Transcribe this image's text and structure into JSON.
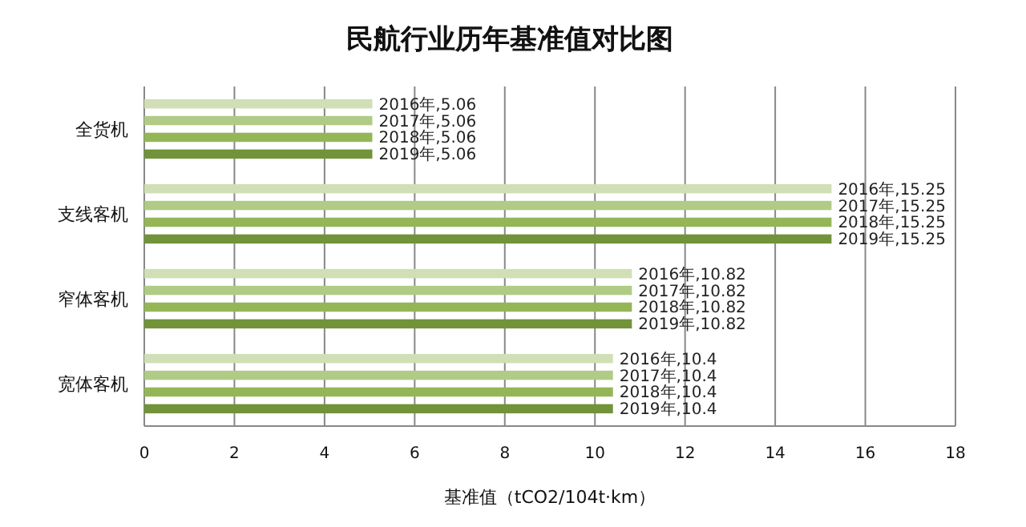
{
  "chart_data": {
    "type": "bar",
    "orientation": "horizontal",
    "title": "民航行业历年基准值对比图",
    "xlabel": "基准值（tCO2/104t·km）",
    "categories": [
      "全货机",
      "支线客机",
      "窄体客机",
      "宽体客机"
    ],
    "series": [
      {
        "color": "#d0dfb5",
        "values": [
          5.06,
          15.25,
          10.82,
          10.4
        ],
        "value_labels": [
          "2016年,5.06",
          "2016年,15.25",
          "2016年,10.82",
          "2016年,10.4"
        ]
      },
      {
        "color": "#b0cb85",
        "values": [
          5.06,
          15.25,
          10.82,
          10.4
        ],
        "value_labels": [
          "2017年,5.06",
          "2017年,15.25",
          "2017年,10.82",
          "2017年,10.4"
        ]
      },
      {
        "color": "#94b657",
        "values": [
          5.06,
          15.25,
          10.82,
          10.4
        ],
        "value_labels": [
          "2018年,5.06",
          "2018年,15.25",
          "2018年,10.82",
          "2018年,10.4"
        ]
      },
      {
        "color": "#72933a",
        "values": [
          5.06,
          15.25,
          10.82,
          10.4
        ],
        "value_labels": [
          "2019年,5.06",
          "2019年,15.25",
          "2019年,10.82",
          "2019年,10.4"
        ]
      }
    ],
    "xlim": [
      0,
      18
    ],
    "xticks": [
      0,
      2,
      4,
      6,
      8,
      10,
      12,
      14,
      16,
      18
    ],
    "grid": "x",
    "legend": false
  }
}
